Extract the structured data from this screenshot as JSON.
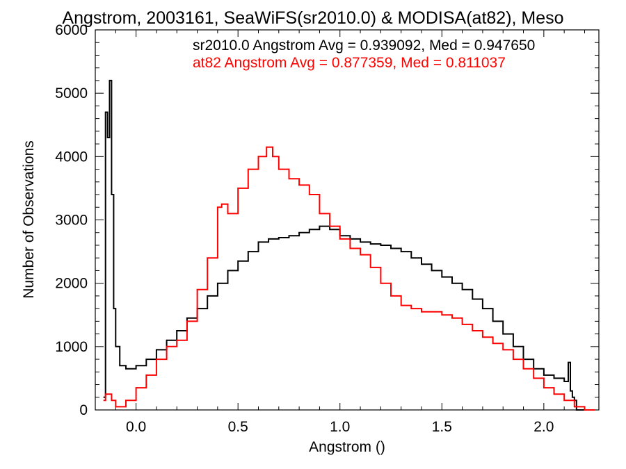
{
  "chart_data": {
    "type": "line",
    "title": "Angstrom, 2003161, SeaWiFS(sr2010.0) & MODISA(at82), Meso",
    "xlabel": "Angstrom ()",
    "ylabel": "Number of Observations",
    "xlim": [
      -0.2,
      2.27
    ],
    "ylim": [
      0,
      6000
    ],
    "x_ticks": [
      "0.0",
      "0.5",
      "1.0",
      "1.5",
      "2.0"
    ],
    "y_ticks": [
      "0",
      "1000",
      "2000",
      "3000",
      "4000",
      "5000",
      "6000"
    ],
    "step_style": "histogram",
    "grid": false,
    "annotations": [
      {
        "text": "sr2010.0 Angstrom Avg = 0.939092, Med = 0.947650",
        "color": "#000000"
      },
      {
        "text": "at82 Angstrom Avg = 0.877359, Med = 0.811037",
        "color": "#ff0000"
      }
    ],
    "series": [
      {
        "color": "#000000",
        "x": [
          -0.16,
          -0.15,
          -0.14,
          -0.13,
          -0.12,
          -0.11,
          -0.1,
          -0.08,
          -0.05,
          0.0,
          0.05,
          0.1,
          0.15,
          0.2,
          0.25,
          0.3,
          0.35,
          0.4,
          0.45,
          0.5,
          0.55,
          0.6,
          0.65,
          0.7,
          0.75,
          0.8,
          0.85,
          0.9,
          0.95,
          1.0,
          1.05,
          1.1,
          1.15,
          1.2,
          1.25,
          1.3,
          1.35,
          1.4,
          1.45,
          1.5,
          1.55,
          1.6,
          1.65,
          1.7,
          1.75,
          1.8,
          1.85,
          1.9,
          1.95,
          2.0,
          2.05,
          2.1,
          2.12,
          2.13,
          2.14,
          2.15,
          2.16,
          2.25
        ],
        "y": [
          200,
          4700,
          4300,
          5200,
          3400,
          1600,
          1000,
          700,
          650,
          700,
          800,
          950,
          1100,
          1250,
          1450,
          1600,
          1800,
          2000,
          2200,
          2350,
          2500,
          2650,
          2700,
          2720,
          2750,
          2800,
          2850,
          2900,
          2850,
          2750,
          2700,
          2650,
          2620,
          2600,
          2550,
          2500,
          2400,
          2300,
          2200,
          2100,
          2000,
          1900,
          1750,
          1600,
          1400,
          1200,
          1000,
          800,
          650,
          550,
          500,
          450,
          750,
          300,
          200,
          150,
          0,
          0
        ]
      },
      {
        "color": "#ff0000",
        "x": [
          -0.16,
          -0.15,
          -0.12,
          -0.1,
          -0.05,
          0.0,
          0.05,
          0.1,
          0.15,
          0.2,
          0.25,
          0.3,
          0.35,
          0.4,
          0.42,
          0.45,
          0.5,
          0.55,
          0.6,
          0.64,
          0.67,
          0.7,
          0.75,
          0.8,
          0.85,
          0.9,
          0.95,
          1.0,
          1.05,
          1.1,
          1.15,
          1.2,
          1.25,
          1.3,
          1.35,
          1.4,
          1.45,
          1.5,
          1.55,
          1.6,
          1.65,
          1.7,
          1.75,
          1.8,
          1.85,
          1.9,
          1.95,
          2.0,
          2.05,
          2.1,
          2.15,
          2.2,
          2.25
        ],
        "y": [
          150,
          250,
          150,
          50,
          150,
          350,
          550,
          800,
          1000,
          1100,
          1400,
          1900,
          2400,
          3200,
          3250,
          3100,
          3500,
          3800,
          4000,
          4150,
          4000,
          3800,
          3650,
          3550,
          3400,
          3100,
          2900,
          2700,
          2550,
          2450,
          2250,
          2000,
          1800,
          1650,
          1600,
          1550,
          1550,
          1500,
          1450,
          1350,
          1250,
          1150,
          1050,
          950,
          800,
          650,
          500,
          350,
          250,
          150,
          50,
          0,
          0
        ]
      }
    ]
  }
}
